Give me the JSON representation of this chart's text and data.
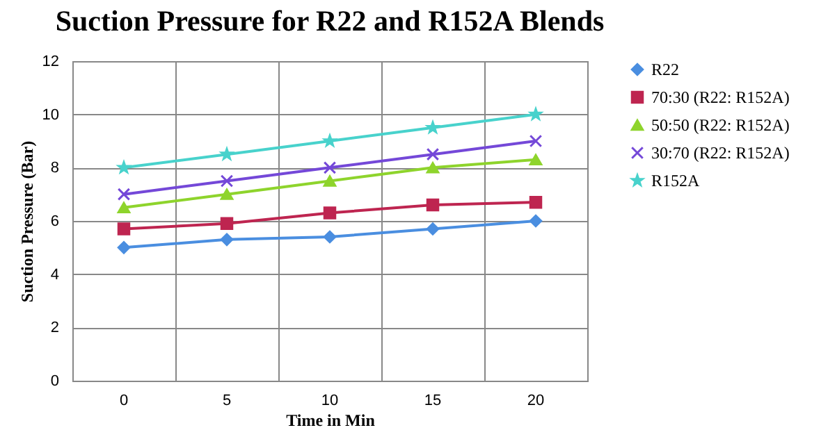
{
  "chart_data": {
    "type": "line",
    "title": "Suction Pressure for R22 and R152A Blends",
    "xlabel": "Time in Min",
    "ylabel": "Suction Pressure (Bar)",
    "categories": [
      "0",
      "5",
      "10",
      "15",
      "20"
    ],
    "series": [
      {
        "name": "R22",
        "color": "#4a8ee0",
        "marker": "diamond",
        "values": [
          5,
          5.3,
          5.4,
          5.7,
          6
        ]
      },
      {
        "name": "70:30 (R22: R152A)",
        "color": "#be2550",
        "marker": "square",
        "values": [
          5.7,
          5.9,
          6.3,
          6.6,
          6.7
        ]
      },
      {
        "name": "50:50 (R22: R152A)",
        "color": "#8ed42c",
        "marker": "triangle",
        "values": [
          6.5,
          7,
          7.5,
          8,
          8.3
        ]
      },
      {
        "name": "30:70 (R22: R152A)",
        "color": "#7448d8",
        "marker": "cross",
        "values": [
          7,
          7.5,
          8,
          8.5,
          9
        ]
      },
      {
        "name": "R152A",
        "color": "#48d2cc",
        "marker": "star",
        "values": [
          8,
          8.5,
          9,
          9.5,
          10
        ]
      }
    ],
    "ylim": [
      0,
      12
    ],
    "yticks": [
      0,
      2,
      4,
      6,
      8,
      10,
      12
    ],
    "grid": true,
    "legend": "right"
  }
}
